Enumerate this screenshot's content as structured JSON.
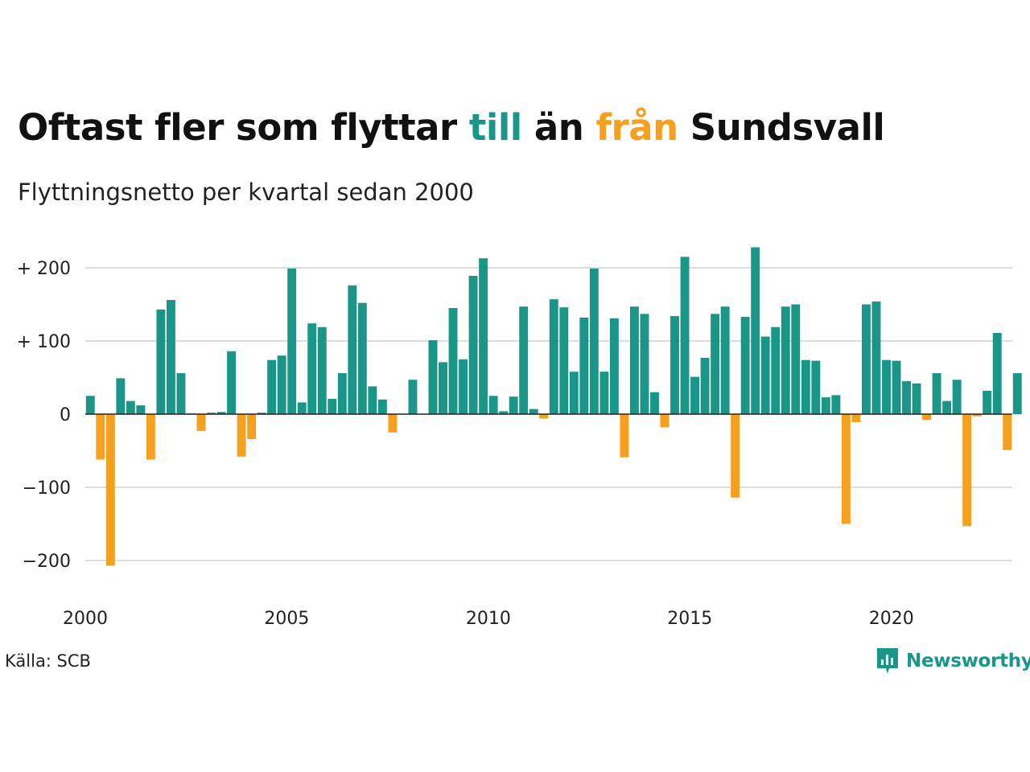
{
  "title": {
    "part1": "Oftast fler som flyttar ",
    "till": "till",
    "part2": " än ",
    "fran": "från",
    "part3": " Sundsvall"
  },
  "subtitle": "Flyttningsnetto per kvartal sedan 2000",
  "source": "Källa: SCB",
  "logo_text": "Newsworthy",
  "colors": {
    "positive": "#1a9688",
    "negative": "#f5a01e",
    "grid": "#dddddd",
    "zero": "#222222"
  },
  "chart_data": {
    "type": "bar",
    "title": "Oftast fler som flyttar till än från Sundsvall",
    "subtitle": "Flyttningsnetto per kvartal sedan 2000",
    "x_start": 2000.0,
    "x_step": 0.25,
    "xlim": [
      2000,
      2023
    ],
    "ylim": [
      -230,
      240
    ],
    "xticks": [
      2000,
      2005,
      2010,
      2015,
      2020
    ],
    "yticks": [
      {
        "value": 200,
        "label": "+ 200"
      },
      {
        "value": 100,
        "label": "+ 100"
      },
      {
        "value": 0,
        "label": "0"
      },
      {
        "value": -100,
        "label": "−100"
      },
      {
        "value": -200,
        "label": "−200"
      }
    ],
    "values": [
      25,
      -62,
      -207,
      49,
      18,
      12,
      -62,
      143,
      156,
      56,
      1,
      -23,
      2,
      3,
      86,
      -58,
      -34,
      2,
      74,
      80,
      199,
      16,
      124,
      119,
      21,
      56,
      176,
      152,
      38,
      20,
      -25,
      0,
      47,
      0,
      101,
      71,
      145,
      75,
      189,
      213,
      25,
      4,
      24,
      147,
      7,
      -6,
      157,
      146,
      58,
      132,
      199,
      58,
      131,
      -59,
      147,
      137,
      30,
      -18,
      134,
      215,
      51,
      77,
      137,
      147,
      -114,
      133,
      228,
      106,
      119,
      147,
      150,
      74,
      73,
      23,
      26,
      -150,
      -11,
      150,
      154,
      74,
      73,
      45,
      42,
      -8,
      56,
      18,
      47,
      -153,
      -3,
      32,
      111,
      -49,
      56
    ]
  }
}
